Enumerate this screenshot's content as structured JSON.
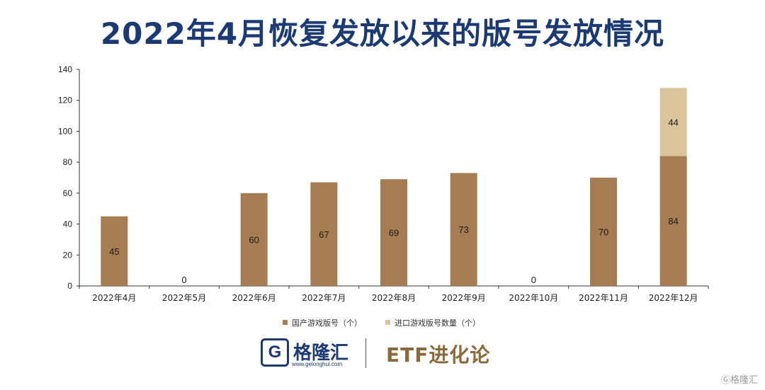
{
  "title": "2022年4月恢复发放以来的版号发放情况",
  "chart_data": {
    "type": "bar",
    "stacked": true,
    "categories": [
      "2022年4月",
      "2022年5月",
      "2022年6月",
      "2022年7月",
      "2022年8月",
      "2022年9月",
      "2022年10月",
      "2022年11月",
      "2022年12月"
    ],
    "series": [
      {
        "name": "国产游戏版号（个）",
        "values": [
          45,
          0,
          60,
          67,
          69,
          73,
          0,
          70,
          84
        ],
        "color": "#a67c52"
      },
      {
        "name": "进口游戏版号数量（个）",
        "values": [
          0,
          0,
          0,
          0,
          0,
          0,
          0,
          0,
          44
        ],
        "color": "#d9c49b"
      }
    ],
    "data_labels": [
      {
        "series": 0,
        "values": [
          "45",
          "0",
          "60",
          "67",
          "69",
          "73",
          "0",
          "70",
          "84"
        ]
      },
      {
        "series": 1,
        "values": [
          "",
          "",
          "",
          "",
          "",
          "",
          "",
          "",
          "44"
        ]
      }
    ],
    "ylim": [
      0,
      140
    ],
    "yticks": [
      0,
      20,
      40,
      60,
      80,
      100,
      120,
      140
    ],
    "grid": false,
    "legend_position": "bottom"
  },
  "footer": {
    "logo_letter": "G",
    "brand_name": "格隆汇",
    "brand_url": "www.gelonghui.com",
    "etf_brand": "ETF进化论"
  },
  "watermark": "Ⓖ格隆汇"
}
